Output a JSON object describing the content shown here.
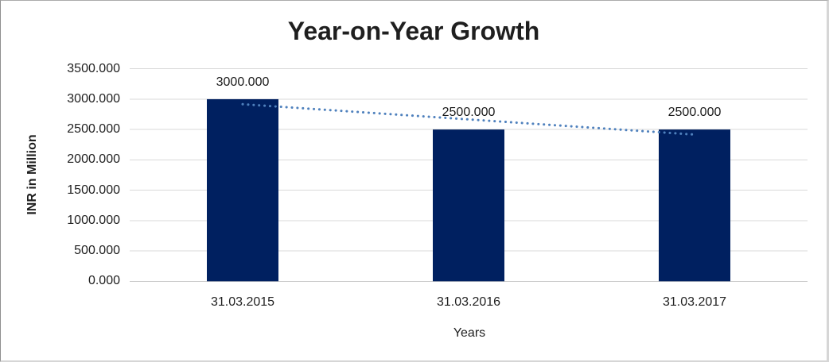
{
  "window": {
    "background": "#ffffff",
    "border_color": "#d6d6d6"
  },
  "chart_data": {
    "type": "bar",
    "title": "Year-on-Year Growth",
    "xlabel": "Years",
    "ylabel": "INR in Million",
    "categories": [
      "31.03.2015",
      "31.03.2016",
      "31.03.2017"
    ],
    "values": [
      3000,
      2500,
      2500
    ],
    "data_labels": [
      "3000.000",
      "2500.000",
      "2500.000"
    ],
    "y_ticks": [
      "3500.000",
      "3000.000",
      "2500.000",
      "2000.000",
      "1500.000",
      "1000.000",
      "500.000",
      "0.000"
    ],
    "y_tick_values": [
      3500,
      3000,
      2500,
      2000,
      1500,
      1000,
      500,
      0
    ],
    "ylim": [
      0,
      3500
    ],
    "y_step": 500,
    "grid": true,
    "legend": "none",
    "colors": {
      "bar": "#002060",
      "trendline": "#4f81bd",
      "gridline": "#d9d9d9",
      "axis_line": "#c9c9c9",
      "text": "#1f1f1f"
    },
    "trendline": {
      "type": "linear",
      "style": "dotted",
      "fit_values_at_categories": [
        2916.67,
        2666.67,
        2416.67
      ]
    }
  }
}
